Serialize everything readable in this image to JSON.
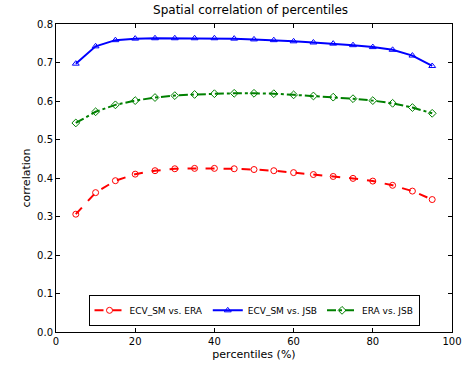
{
  "chart_data": {
    "type": "line",
    "title": "Spatial correlation of percentiles",
    "x_label": "percentiles (%)",
    "y_label": "correlation",
    "x": [
      5,
      10,
      15,
      20,
      25,
      30,
      35,
      40,
      45,
      50,
      55,
      60,
      65,
      70,
      75,
      80,
      85,
      90,
      95
    ],
    "series": [
      {
        "name": "ECV_SM vs. ERA",
        "color": "#ff0000",
        "marker": "circle",
        "line_style": "dashed",
        "values": [
          0.306,
          0.362,
          0.393,
          0.41,
          0.419,
          0.424,
          0.425,
          0.425,
          0.424,
          0.422,
          0.419,
          0.414,
          0.409,
          0.404,
          0.399,
          0.392,
          0.381,
          0.366,
          0.344
        ]
      },
      {
        "name": "ECV_SM vs. JSB",
        "color": "#0000ff",
        "marker": "triangle-up",
        "line_style": "solid",
        "values": [
          0.697,
          0.742,
          0.758,
          0.762,
          0.763,
          0.763,
          0.763,
          0.763,
          0.762,
          0.76,
          0.758,
          0.755,
          0.752,
          0.749,
          0.745,
          0.74,
          0.733,
          0.718,
          0.691
        ]
      },
      {
        "name": "ERA vs. JSB",
        "color": "#008000",
        "marker": "diamond",
        "line_style": "dashdot",
        "values": [
          0.543,
          0.572,
          0.59,
          0.601,
          0.609,
          0.614,
          0.617,
          0.619,
          0.62,
          0.62,
          0.619,
          0.616,
          0.613,
          0.61,
          0.606,
          0.601,
          0.594,
          0.583,
          0.568
        ]
      }
    ],
    "xlim": [
      0,
      100
    ],
    "xticks": [
      0,
      20,
      40,
      60,
      80,
      100
    ],
    "ylim": [
      0,
      0.8
    ],
    "yticks": [
      {
        "value": 0,
        "label": "0.0"
      },
      0.1,
      0.2,
      0.3,
      0.4,
      0.5,
      0.6,
      0.7,
      0.8
    ],
    "grid": false,
    "legend": "bottom"
  }
}
